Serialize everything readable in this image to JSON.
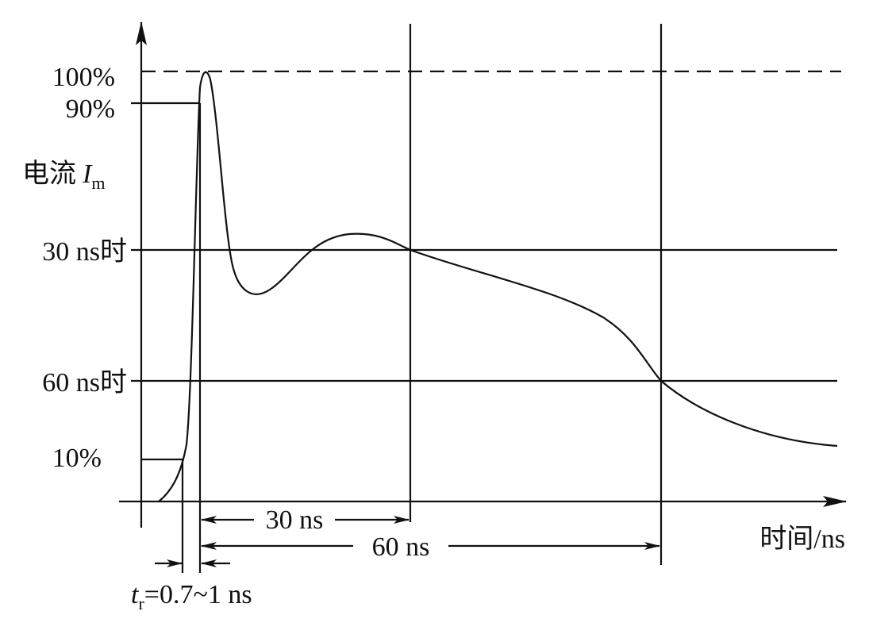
{
  "y_labels": {
    "full": "100%",
    "p90": "90%",
    "title_cn": "电流",
    "title_symbol": "I",
    "title_sub": "m",
    "at30": "30 ns时",
    "at60": "60 ns时",
    "p10": "10%"
  },
  "x_axis_title": "时间/ns",
  "spans": {
    "s30": "30 ns",
    "s60": "60 ns"
  },
  "rise_time": {
    "symbol": "t",
    "sub": "r",
    "text": "=0.7~1 ns"
  }
}
